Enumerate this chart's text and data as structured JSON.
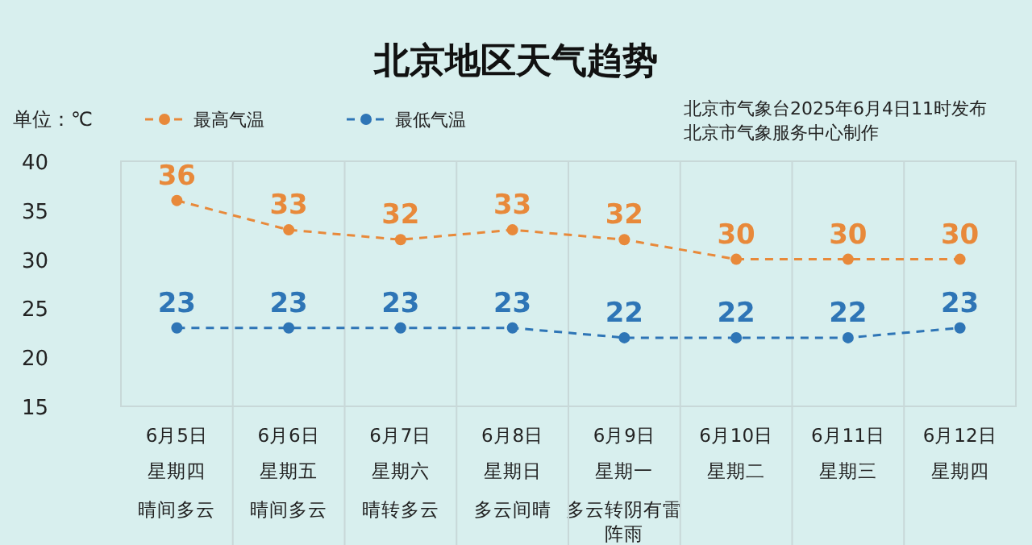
{
  "chart_data": {
    "type": "line",
    "title": "北京地区天气趋势",
    "ylabel": "单位：℃",
    "annotations": [
      "北京市气象台2025年6月4日11时发布",
      "北京市气象服务中心制作",
      "星期四",
      "星期五",
      "星期六",
      "星期日",
      "星期一",
      "星期二",
      "星期三",
      "星期四",
      "晴间多云",
      "晴间多云",
      "晴转多云",
      "多云间晴",
      "多云转阴有雷阵雨"
    ],
    "categories": [
      "6月5日",
      "6月6日",
      "6月7日",
      "6月8日",
      "6月9日",
      "6月10日",
      "6月11日",
      "6月12日"
    ],
    "series": [
      {
        "name": "最高气温",
        "color": "#e8893a",
        "values": [
          36,
          33,
          32,
          33,
          32,
          30,
          30,
          30
        ]
      },
      {
        "name": "最低气温",
        "color": "#2e75b6",
        "values": [
          23,
          23,
          23,
          23,
          22,
          22,
          22,
          23
        ]
      }
    ],
    "ylim": [
      15,
      40
    ],
    "yticks": [
      15,
      20,
      25,
      30,
      35,
      40
    ],
    "grid": "x",
    "legend": "top left",
    "marker": "circle",
    "line_style": "dashed",
    "data_labels": true
  }
}
